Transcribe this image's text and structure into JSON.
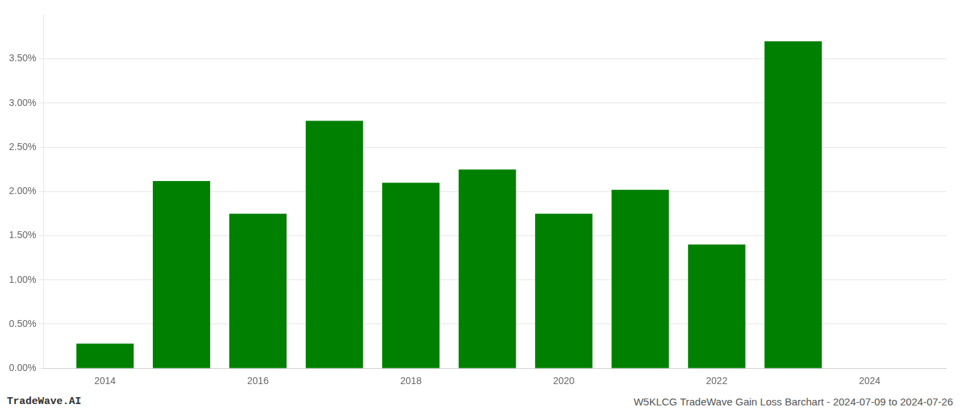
{
  "chart_data": {
    "type": "bar",
    "x": [
      2014,
      2015,
      2016,
      2017,
      2018,
      2019,
      2020,
      2021,
      2022,
      2023
    ],
    "values": [
      0.0028,
      0.0212,
      0.0175,
      0.028,
      0.021,
      0.0225,
      0.0175,
      0.0202,
      0.014,
      0.037
    ],
    "color": "#008000",
    "xlim": [
      2013.2,
      2025.0
    ],
    "xticks": [
      2014,
      2016,
      2018,
      2020,
      2022,
      2024
    ],
    "ylim": [
      0,
      0.04
    ],
    "yticks": [
      {
        "value": 0.0,
        "label": "0.00%"
      },
      {
        "value": 0.005,
        "label": "0.50%"
      },
      {
        "value": 0.01,
        "label": "1.00%"
      },
      {
        "value": 0.015,
        "label": "1.50%"
      },
      {
        "value": 0.02,
        "label": "2.00%"
      },
      {
        "value": 0.025,
        "label": "2.50%"
      },
      {
        "value": 0.03,
        "label": "3.00%"
      },
      {
        "value": 0.035,
        "label": "3.50%"
      }
    ],
    "grid": "y",
    "annotations": [
      "TradeWave.AI",
      "W5KLCG TradeWave Gain Loss Barchart - 2024-07-09 to 2024-07-26"
    ]
  }
}
